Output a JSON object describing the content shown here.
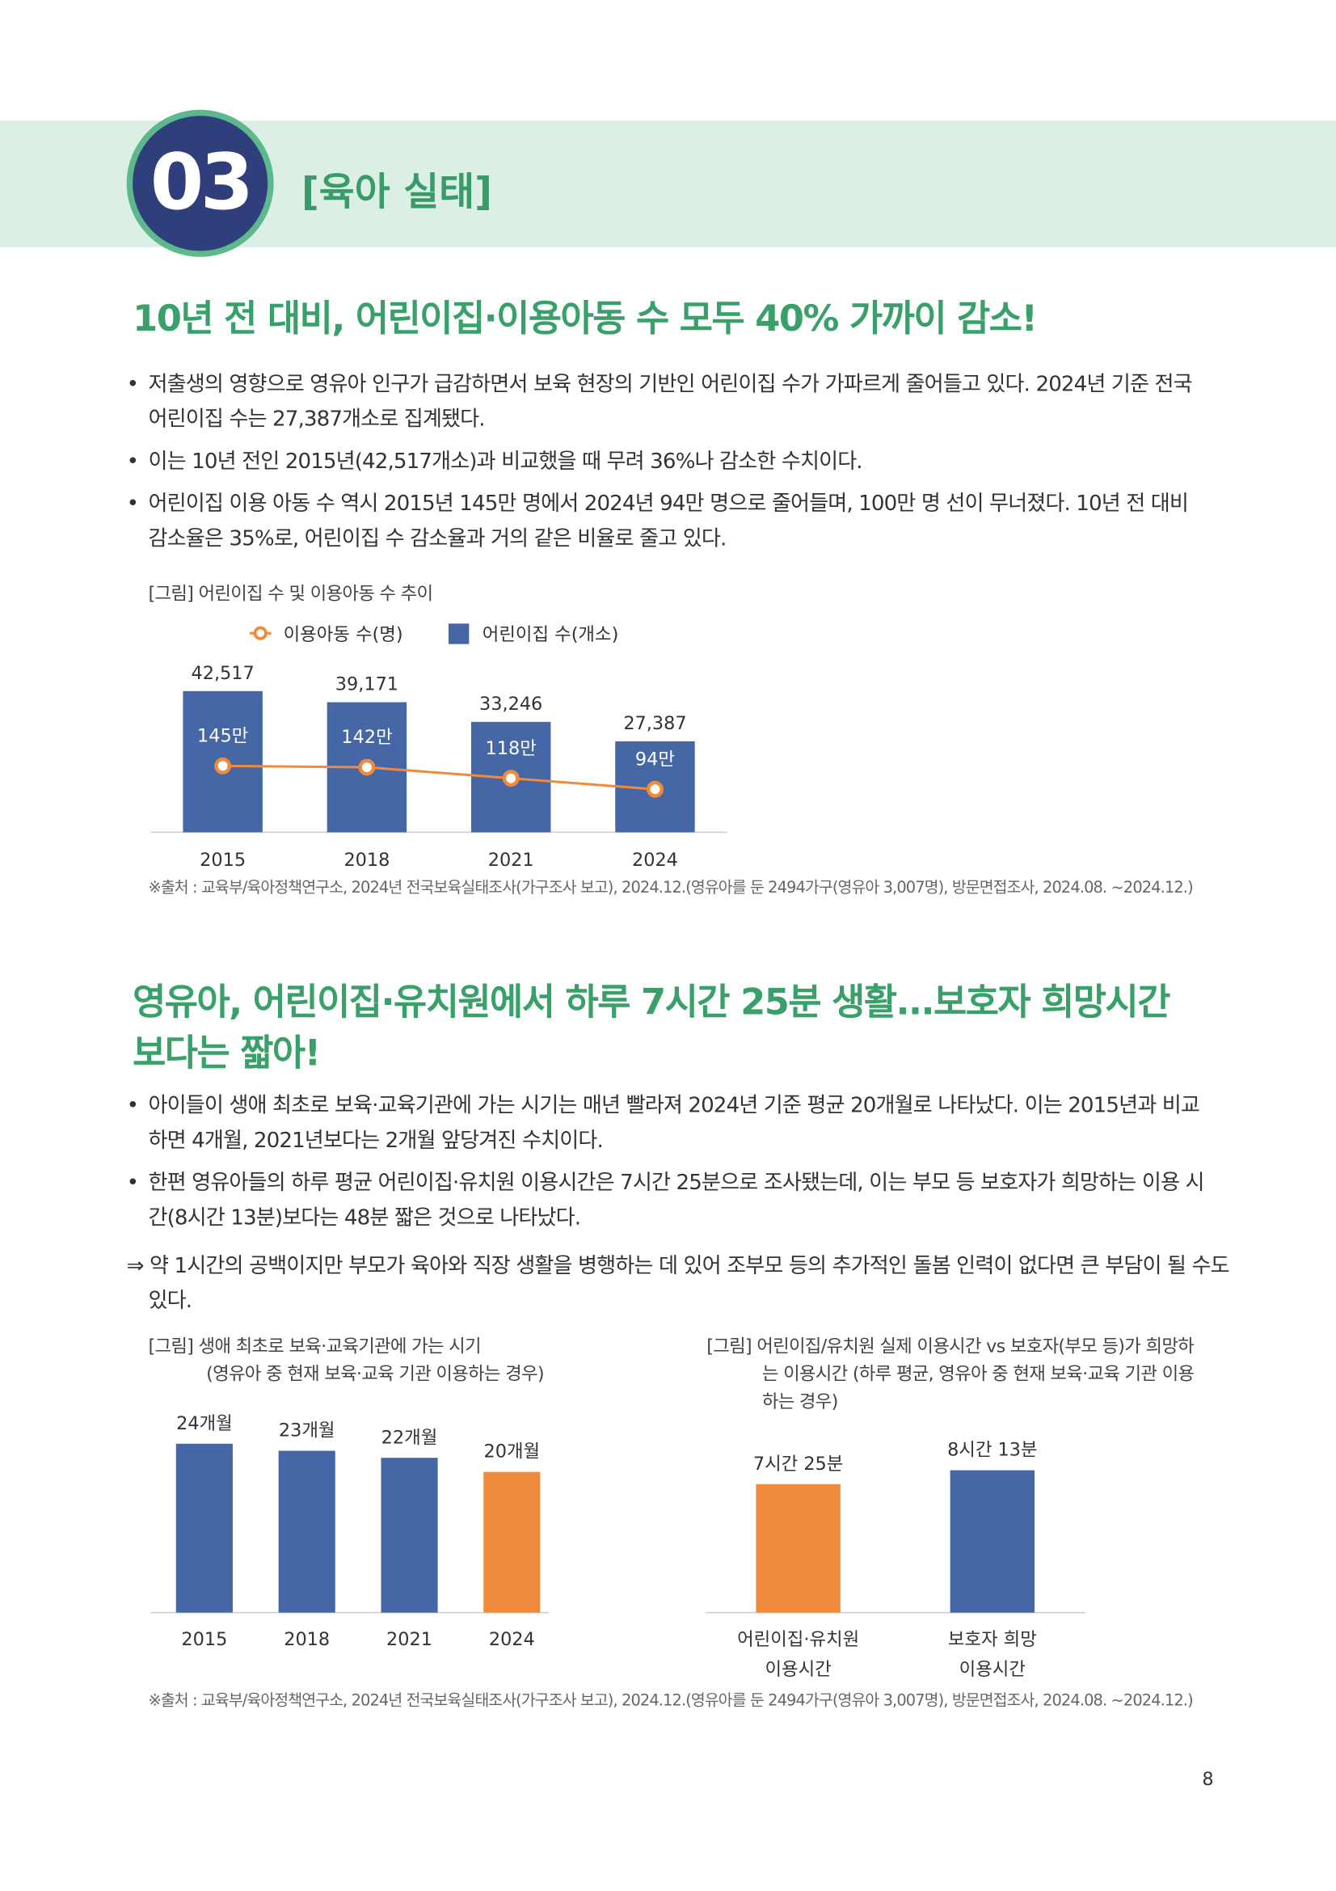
{
  "header": {
    "number": "03",
    "title": "[육아 실태]"
  },
  "sections": [
    {
      "headline": "10년 전 대비, 어린이집·이용아동 수 모두 40% 가까이 감소!",
      "bullets": [
        "저출생의 영향으로 영유아 인구가 급감하면서 보육 현장의 기반인 어린이집 수가 가파르게 줄어들고 있다. 2024년 기준 전국 어린이집 수는 27,387개소로 집계됐다.",
        "이는 10년 전인 2015년(42,517개소)과 비교했을 때 무려 36%나 감소한 수치이다.",
        "어린이집 이용 아동 수 역시 2015년 145만 명에서 2024년 94만 명으로 줄어들며, 100만 명 선이 무너졌다. 10년 전 대비 감소율은 35%로, 어린이집 수 감소율과 거의 같은 비율로 줄고 있다."
      ],
      "source": "※출처 : 교육부/육아정책연구소, 2024년 전국보육실태조사(가구조사 보고), 2024.12.(영유아를 둔 2494가구(영유아 3,007명), 방문면접조사, 2024.08. ~2024.12.)"
    },
    {
      "headline": "영유아, 어린이집·유치원에서 하루 7시간 25분 생활...보호자 희망시간보다는 짧아!",
      "bullets": [
        "아이들이 생애 최초로 보육·교육기관에 가는 시기는 매년 빨라져 2024년 기준 평균 20개월로 나타났다. 이는 2015년과 비교하면 4개월, 2021년보다는 2개월 앞당겨진 수치이다.",
        "한편 영유아들의 하루 평균 어린이집·유치원 이용시간은 7시간 25분으로 조사됐는데, 이는 부모 등 보호자가 희망하는 이용 시간(8시간 13분)보다는 48분 짧은 것으로 나타났다."
      ],
      "conclusion": "⇒ 약 1시간의 공백이지만 부모가 육아와 직장 생활을 병행하는 데 있어 조부모 등의 추가적인 돌봄 인력이 없다면 큰 부담이 될 수도 있다.",
      "source": "※출처 : 교육부/육아정책연구소, 2024년 전국보육실태조사(가구조사 보고), 2024.12.(영유아를 둔 2494가구(영유아 3,007명), 방문면접조사, 2024.08. ~2024.12.)"
    }
  ],
  "chart_data": [
    {
      "type": "combo",
      "title": "[그림] 어린이집 수 및 이용아동 수 추이",
      "categories": [
        "2015",
        "2018",
        "2021",
        "2024"
      ],
      "series": [
        {
          "name": "이용아동 수(명)",
          "type": "line",
          "color": "#f08a3c",
          "values": [
            145,
            142,
            118,
            94
          ],
          "value_labels": [
            "145만",
            "142만",
            "118만",
            "94만"
          ]
        },
        {
          "name": "어린이집 수(개소)",
          "type": "bar",
          "color": "#4567a6",
          "values": [
            42517,
            39171,
            33246,
            27387
          ],
          "value_labels": [
            "42,517",
            "39,171",
            "33,246",
            "27,387"
          ]
        }
      ]
    },
    {
      "type": "bar",
      "title": "[그림] 생애 최초로 보육·교육기관에 가는 시기",
      "subtitle": "(영유아 중 현재 보육·교육 기관 이용하는 경우)",
      "categories": [
        "2015",
        "2018",
        "2021",
        "2024"
      ],
      "values": [
        24,
        23,
        22,
        20
      ],
      "value_labels": [
        "24개월",
        "23개월",
        "22개월",
        "20개월"
      ],
      "colors": [
        "#4567a6",
        "#4567a6",
        "#4567a6",
        "#f08a3c"
      ]
    },
    {
      "type": "bar",
      "title": "[그림] 어린이집/유치원 실제 이용시간 vs 보호자(부모 등)가 희망하는 이용시간 (하루 평균, 영유아 중 현재 보육·교육 기관 이용하는 경우)",
      "categories": [
        "어린이집·유치원\n이용시간",
        "보호자 희망\n이용시간"
      ],
      "values": [
        445,
        493
      ],
      "value_labels": [
        "7시간 25분",
        "8시간 13분"
      ],
      "colors": [
        "#f08a3c",
        "#4567a6"
      ]
    }
  ],
  "page_number": "8"
}
